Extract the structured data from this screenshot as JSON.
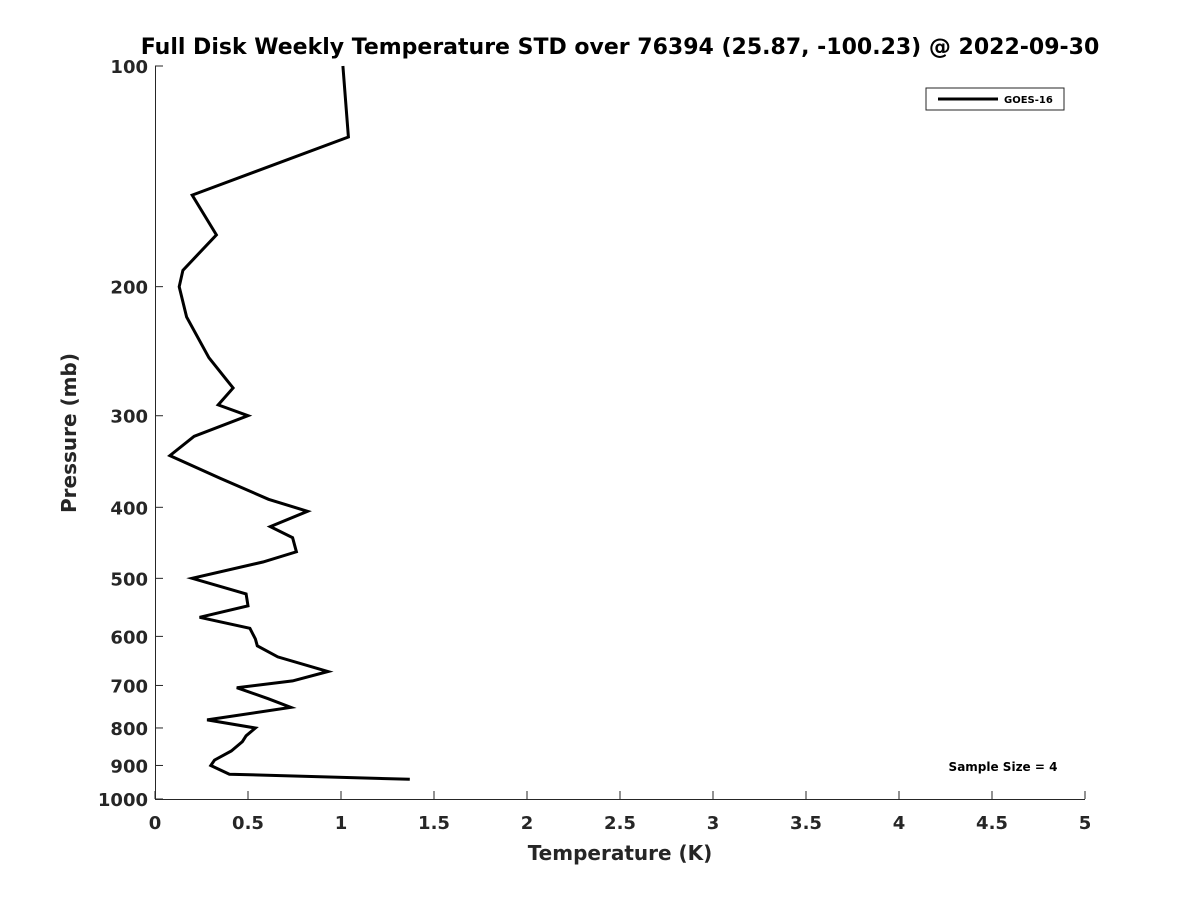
{
  "chart_data": {
    "type": "line",
    "title": "Full Disk Weekly Temperature STD over 76394 (25.87, -100.23) @ 2022-09-30",
    "xlabel": "Temperature (K)",
    "ylabel": "Pressure (mb)",
    "xlim": [
      0,
      5
    ],
    "ylim": [
      100,
      1000
    ],
    "y_scale": "log",
    "y_reversed": true,
    "x_ticks": [
      "0",
      "0.5",
      "1",
      "1.5",
      "2",
      "2.5",
      "3",
      "3.5",
      "4",
      "4.5",
      "5"
    ],
    "y_ticks": [
      "100",
      "200",
      "300",
      "400",
      "500",
      "600",
      "700",
      "800",
      "900",
      "1000"
    ],
    "grid": false,
    "legend_position": "top-right",
    "series": [
      {
        "name": "GOES-16",
        "color": "#000000",
        "points": [
          [
            1.01,
            100
          ],
          [
            1.04,
            125
          ],
          [
            0.2,
            150
          ],
          [
            0.33,
            170
          ],
          [
            0.15,
            190
          ],
          [
            0.13,
            200
          ],
          [
            0.17,
            220
          ],
          [
            0.29,
            250
          ],
          [
            0.42,
            275
          ],
          [
            0.34,
            290
          ],
          [
            0.5,
            300
          ],
          [
            0.21,
            320
          ],
          [
            0.08,
            340
          ],
          [
            0.35,
            365
          ],
          [
            0.61,
            390
          ],
          [
            0.82,
            405
          ],
          [
            0.62,
            425
          ],
          [
            0.74,
            440
          ],
          [
            0.76,
            460
          ],
          [
            0.58,
            475
          ],
          [
            0.2,
            500
          ],
          [
            0.49,
            525
          ],
          [
            0.5,
            545
          ],
          [
            0.24,
            565
          ],
          [
            0.51,
            585
          ],
          [
            0.54,
            605
          ],
          [
            0.55,
            618
          ],
          [
            0.66,
            640
          ],
          [
            0.93,
            670
          ],
          [
            0.74,
            690
          ],
          [
            0.44,
            705
          ],
          [
            0.61,
            730
          ],
          [
            0.73,
            750
          ],
          [
            0.28,
            780
          ],
          [
            0.54,
            800
          ],
          [
            0.49,
            820
          ],
          [
            0.47,
            835
          ],
          [
            0.41,
            860
          ],
          [
            0.32,
            885
          ],
          [
            0.3,
            900
          ],
          [
            0.4,
            925
          ],
          [
            1.37,
            940
          ]
        ]
      }
    ],
    "annotations": [
      "Sample Size = 4"
    ]
  }
}
